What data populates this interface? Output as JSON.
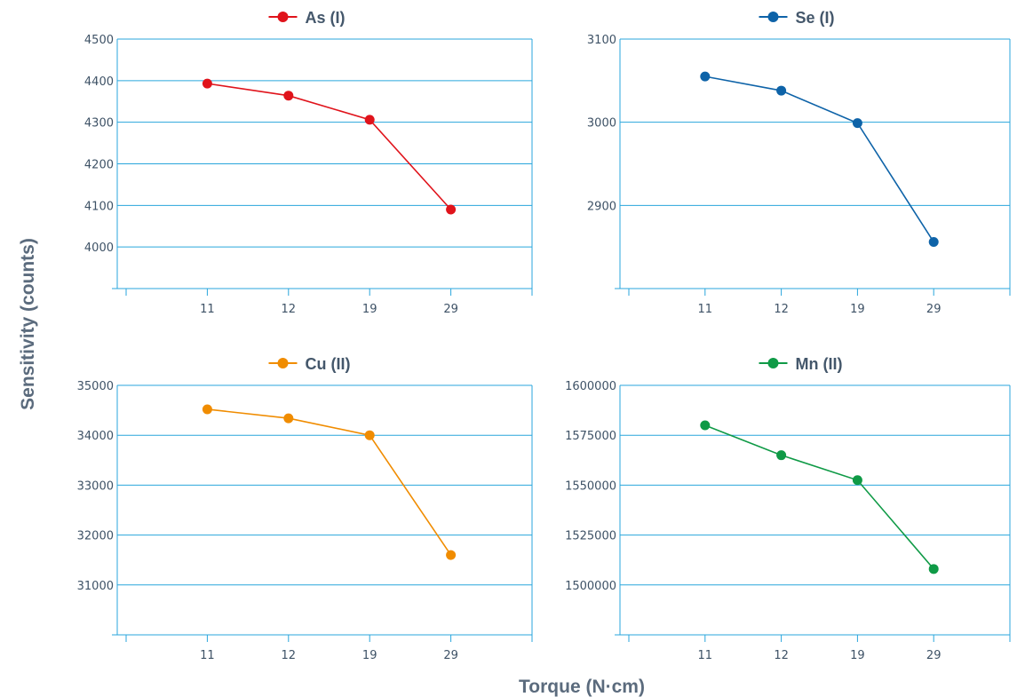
{
  "chart_data": {
    "type": "line",
    "xlabel": "Torque (N·cm)",
    "ylabel": "Sensitivity (counts)",
    "categories": [
      "11",
      "12",
      "19",
      "29"
    ],
    "grid": true,
    "legend_position": "top-center",
    "panels": [
      {
        "series": [
          {
            "name": "As (I)",
            "values": [
              4393,
              4364,
              4306,
              4090
            ]
          }
        ],
        "color": "#e0131b",
        "ylim": [
          3900,
          4500
        ],
        "yticks": [
          4000,
          4100,
          4200,
          4300,
          4400,
          4500
        ]
      },
      {
        "series": [
          {
            "name": "Se (I)",
            "values": [
              3055,
              3038,
              2999,
              2856
            ]
          }
        ],
        "color": "#0e63a8",
        "ylim": [
          2800,
          3100
        ],
        "yticks": [
          2900,
          3000,
          3100
        ]
      },
      {
        "series": [
          {
            "name": "Cu (II)",
            "values": [
              34520,
              34340,
              34000,
              31600
            ]
          }
        ],
        "color": "#f08c00",
        "ylim": [
          30000,
          35000
        ],
        "yticks": [
          31000,
          32000,
          33000,
          34000,
          35000
        ]
      },
      {
        "series": [
          {
            "name": "Mn (II)",
            "values": [
              1580000,
              1565000,
              1552500,
              1508000
            ]
          }
        ],
        "color": "#0f9a46",
        "ylim": [
          1475000,
          1600000
        ],
        "yticks": [
          1500000,
          1525000,
          1550000,
          1575000,
          1600000
        ]
      }
    ]
  }
}
